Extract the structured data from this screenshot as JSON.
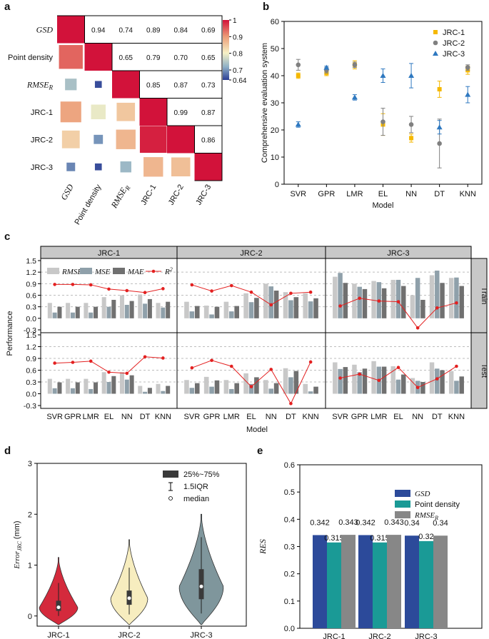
{
  "chart_data": [
    {
      "panel": "a",
      "type": "heatmap",
      "labels": [
        "GSD",
        "Point density",
        "RMSE_R",
        "JRC-1",
        "JRC-2",
        "JRC-3"
      ],
      "label_display": {
        "GSD": "GSD",
        "Point density": "Point density",
        "RMSE_R": "RMSE",
        "RMSE_R_sub": "R",
        "JRC-1": "JRC-1",
        "JRC-2": "JRC-2",
        "JRC-3": "JRC-3"
      },
      "matrix": [
        [
          1.0,
          0.94,
          0.74,
          0.89,
          0.84,
          0.69
        ],
        [
          0.94,
          1.0,
          0.65,
          0.79,
          0.7,
          0.65
        ],
        [
          0.74,
          0.65,
          1.0,
          0.85,
          0.87,
          0.73
        ],
        [
          0.89,
          0.79,
          0.85,
          1.0,
          0.99,
          0.87
        ],
        [
          0.84,
          0.7,
          0.87,
          0.99,
          1.0,
          0.86
        ],
        [
          0.69,
          0.65,
          0.73,
          0.87,
          0.86,
          1.0
        ]
      ],
      "colorbar_ticks": [
        "1",
        "0.9",
        "0.8",
        "0.7",
        "0.64"
      ],
      "color_range": [
        0.64,
        1
      ]
    },
    {
      "panel": "b",
      "type": "scatter",
      "xlabel": "Model",
      "ylabel": "Comprehensive evaluation system",
      "ylim": [
        0,
        60
      ],
      "yticks": [
        0,
        10,
        20,
        30,
        40,
        50,
        60
      ],
      "categories": [
        "SVR",
        "GPR",
        "LMR",
        "EL",
        "NN",
        "DT",
        "KNN"
      ],
      "series": [
        {
          "name": "JRC-1",
          "color": "#f5b800",
          "marker": "square",
          "values": [
            40,
            41,
            44,
            22,
            17,
            35,
            42
          ],
          "errors": [
            1,
            1,
            1.5,
            4,
            1.5,
            3,
            1.5
          ]
        },
        {
          "name": "JRC-2",
          "color": "#808080",
          "marker": "circle",
          "values": [
            44,
            42,
            44,
            23,
            22,
            15,
            43
          ],
          "errors": [
            2,
            1,
            1,
            5,
            3,
            9,
            1
          ]
        },
        {
          "name": "JRC-3",
          "color": "#2e78c0",
          "marker": "triangle",
          "values": [
            22,
            43,
            32,
            40,
            40,
            21,
            33
          ],
          "errors": [
            1,
            0.5,
            1,
            2.5,
            4.5,
            2.5,
            3
          ]
        }
      ]
    },
    {
      "panel": "c",
      "type": "bar",
      "ylabel": "Performance",
      "xlabel": "Model",
      "ylim": [
        -0.3,
        1.5
      ],
      "yticks": [
        "1.5",
        "1.2",
        "0.9",
        "0.6",
        "0.3",
        "0.0",
        "-0.3"
      ],
      "categories": [
        "SVR",
        "GPR",
        "LMR",
        "EL",
        "NN",
        "DT",
        "KNN"
      ],
      "columns": [
        "JRC-1",
        "JRC-2",
        "JRC-3"
      ],
      "rows": [
        "Train",
        "Test"
      ],
      "legend": [
        "RMSE",
        "MSE",
        "MAE",
        "R"
      ],
      "legend_sup": "2",
      "colors": {
        "RMSE": "#c8c8c8",
        "MSE": "#8fa0aa",
        "MAE": "#707070",
        "R2": "#e32020"
      },
      "panels": {
        "Train-JRC-1": {
          "RMSE": [
            0.4,
            0.4,
            0.4,
            0.55,
            0.6,
            0.62,
            0.4
          ],
          "MSE": [
            0.15,
            0.15,
            0.15,
            0.3,
            0.35,
            0.38,
            0.28
          ],
          "MAE": [
            0.3,
            0.3,
            0.3,
            0.48,
            0.45,
            0.5,
            0.43
          ],
          "R2": [
            0.88,
            0.88,
            0.87,
            0.76,
            0.72,
            0.67,
            0.77
          ]
        },
        "Train-JRC-2": {
          "RMSE": [
            0.43,
            0.33,
            0.43,
            0.65,
            0.9,
            0.68,
            0.65
          ],
          "MSE": [
            0.18,
            0.1,
            0.18,
            0.42,
            0.83,
            0.47,
            0.44
          ],
          "MAE": [
            0.32,
            0.3,
            0.32,
            0.53,
            0.72,
            0.55,
            0.52
          ],
          "R2": [
            0.87,
            0.71,
            0.85,
            0.68,
            0.35,
            0.65,
            0.68
          ]
        },
        "Train-JRC-3": {
          "RMSE": [
            1.08,
            0.9,
            0.97,
            1.0,
            0.6,
            1.12,
            1.05
          ],
          "MSE": [
            1.18,
            0.82,
            0.94,
            1.0,
            1.05,
            1.24,
            1.06
          ],
          "MAE": [
            0.92,
            0.76,
            0.78,
            0.84,
            0.48,
            0.92,
            0.84
          ],
          "R2": [
            0.32,
            0.52,
            0.45,
            0.43,
            -0.25,
            0.27,
            0.4
          ]
        },
        "Test-JRC-1": {
          "RMSE": [
            0.38,
            0.38,
            0.38,
            0.55,
            0.55,
            0.2,
            0.25
          ],
          "MSE": [
            0.14,
            0.14,
            0.12,
            0.3,
            0.36,
            0.05,
            0.07
          ],
          "MAE": [
            0.29,
            0.29,
            0.29,
            0.45,
            0.47,
            0.15,
            0.2
          ],
          "R2": [
            0.78,
            0.8,
            0.83,
            0.55,
            0.52,
            0.94,
            0.91
          ]
        },
        "Test-JRC-2": {
          "RMSE": [
            0.35,
            0.43,
            0.35,
            0.52,
            0.35,
            0.65,
            0.25
          ],
          "MSE": [
            0.15,
            0.18,
            0.12,
            0.25,
            0.13,
            0.42,
            0.06
          ],
          "MAE": [
            0.27,
            0.34,
            0.27,
            0.42,
            0.27,
            0.58,
            0.18
          ],
          "R2": [
            0.66,
            0.85,
            0.7,
            0.18,
            0.62,
            -0.25,
            0.81
          ]
        },
        "Test-JRC-3": {
          "RMSE": [
            0.8,
            0.74,
            0.83,
            0.7,
            0.4,
            0.8,
            0.58
          ],
          "MSE": [
            0.63,
            0.55,
            0.69,
            0.36,
            0.33,
            0.64,
            0.33
          ],
          "MAE": [
            0.68,
            0.64,
            0.69,
            0.49,
            0.3,
            0.6,
            0.44
          ],
          "R2": [
            0.4,
            0.5,
            0.34,
            0.67,
            0.16,
            0.38,
            0.7
          ]
        }
      }
    },
    {
      "panel": "d",
      "type": "violin",
      "ylabel": "Error",
      "ylabel_sub": "JRC",
      "ylabel_unit": " (mm)",
      "ylim": [
        -0.2,
        3
      ],
      "yticks": [
        0,
        1,
        2,
        3
      ],
      "categories": [
        "JRC-1",
        "JRC-2",
        "JRC-3"
      ],
      "colors": [
        "#d42a3c",
        "#f7edbf",
        "#7f969c"
      ],
      "stats": [
        {
          "min": 0.0,
          "q1": 0.1,
          "median": 0.17,
          "q3": 0.3,
          "max": 0.65,
          "top": 1.15
        },
        {
          "min": 0.03,
          "q1": 0.22,
          "median": 0.35,
          "q3": 0.5,
          "max": 0.95,
          "top": 1.5
        },
        {
          "min": 0.05,
          "q1": 0.33,
          "median": 0.58,
          "q3": 0.92,
          "max": 1.55,
          "top": 2.0
        }
      ],
      "legend": [
        "25%~75%",
        "1.5IQR",
        "median"
      ]
    },
    {
      "panel": "e",
      "type": "bar",
      "ylabel": "RES",
      "ylim": [
        0,
        0.6
      ],
      "yticks": [
        "0.0",
        "0.1",
        "0.2",
        "0.3",
        "0.4",
        "0.5",
        "0.6"
      ],
      "categories": [
        "JRC-1",
        "JRC-2",
        "JRC-3"
      ],
      "series": [
        {
          "name": "GSD",
          "color": "#2c4a9a",
          "values": [
            0.342,
            0.342,
            0.34
          ]
        },
        {
          "name": "Point density",
          "color": "#1a9a96",
          "values": [
            0.315,
            0.315,
            0.32
          ]
        },
        {
          "name": "RMSE_R",
          "color": "#878787",
          "values": [
            0.343,
            0.343,
            0.34
          ]
        }
      ],
      "legend_display": [
        "GSD",
        "Point density",
        "RMSE",
        "R"
      ]
    }
  ],
  "panel_labels": [
    "a",
    "b",
    "c",
    "d",
    "e"
  ]
}
